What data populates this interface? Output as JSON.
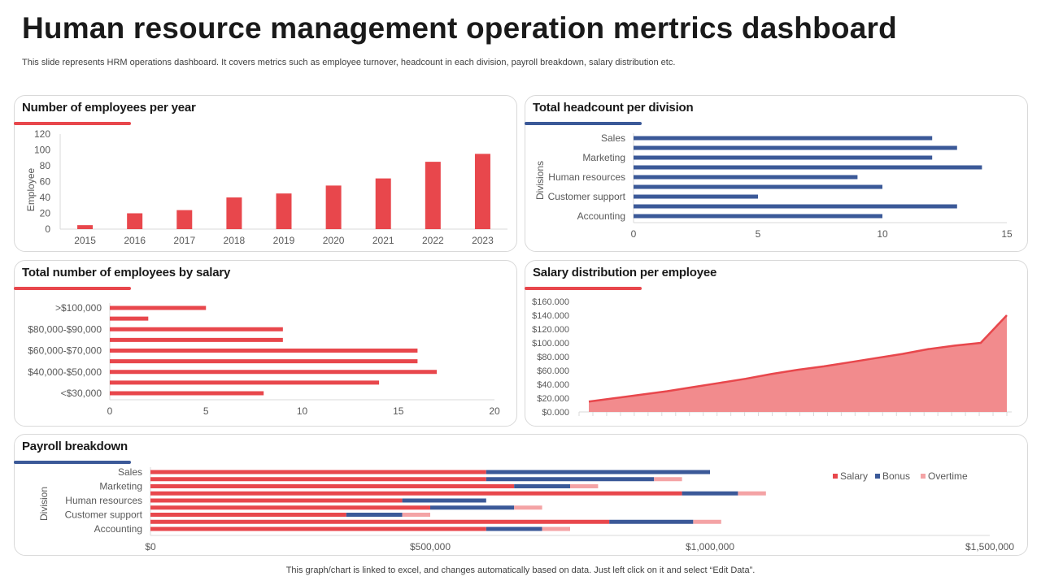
{
  "page": {
    "title": "Human resource management operation mertrics dashboard",
    "subtitle": "This slide represents HRM operations dashboard. It covers metrics such as employee turnover, headcount in each division, payroll breakdown, salary distribution etc.",
    "footer": "This graph/chart is linked to excel,  and changes automatically based on data. Just left click on it and select “Edit Data”."
  },
  "colors": {
    "red": "#e8474c",
    "blue": "#3b5998",
    "pink": "#f4a3a5",
    "area": "#f28b8d"
  },
  "panels": {
    "employees": "Number of employees per year",
    "headcount": "Total headcount per division",
    "salary_count": "Total number of employees by salary",
    "salary_dist": "Salary distribution per employee",
    "payroll": "Payroll breakdown"
  },
  "chart_data": [
    {
      "id": "employees",
      "type": "bar",
      "title": "Number of employees per year",
      "ylabel": "Employee",
      "ylim": [
        0,
        120
      ],
      "yticks": [
        0,
        20,
        40,
        60,
        80,
        100,
        120
      ],
      "categories": [
        "2015",
        "2016",
        "2017",
        "2018",
        "2019",
        "2020",
        "2021",
        "2022",
        "2023"
      ],
      "values": [
        5,
        20,
        24,
        40,
        45,
        55,
        64,
        85,
        95
      ],
      "grid": false
    },
    {
      "id": "headcount",
      "type": "bar",
      "orientation": "horizontal",
      "title": "Total headcount per division",
      "ylabel": "Divisions",
      "xlim": [
        0,
        15
      ],
      "xticks": [
        0,
        5,
        10,
        15
      ],
      "tick_labels": [
        "Sales",
        "Marketing",
        "Human resources",
        "Customer support",
        "Accounting"
      ],
      "values": [
        12,
        13,
        12,
        14,
        9,
        10,
        5,
        13,
        10
      ]
    },
    {
      "id": "salary_count",
      "type": "bar",
      "orientation": "horizontal",
      "title": "Total number of employees by salary",
      "xlim": [
        0,
        20
      ],
      "xticks": [
        0,
        5,
        10,
        15,
        20
      ],
      "tick_labels": [
        ">$100,000",
        "$80,000-$90,000",
        "$60,000-$70,000",
        "$40,000-$50,000",
        "<$30,000"
      ],
      "values": [
        5,
        2,
        9,
        9,
        16,
        16,
        17,
        14,
        8
      ]
    },
    {
      "id": "salary_dist",
      "type": "area",
      "title": "Salary distribution per employee",
      "ylim": [
        0,
        160000
      ],
      "yticks": [
        "$0.000",
        "$20.000",
        "$40.000",
        "$60.000",
        "$80.000",
        "$100.000",
        "$120.000",
        "$140.000",
        "$160.000"
      ],
      "values": [
        15000,
        20000,
        25000,
        30000,
        36000,
        42000,
        48000,
        55000,
        61000,
        66000,
        72000,
        78000,
        84000,
        91000,
        96000,
        100000,
        140000
      ]
    },
    {
      "id": "payroll",
      "type": "bar",
      "orientation": "horizontal",
      "stacked": true,
      "title": "Payroll breakdown",
      "ylabel": "Division",
      "xlim": [
        0,
        1500000
      ],
      "xticks": [
        "$0",
        "$500,000",
        "$1,000,000",
        "$1,500,000"
      ],
      "tick_labels": [
        "Sales",
        "Marketing",
        "Human resources",
        "Customer support",
        "Accounting"
      ],
      "legend": "right",
      "series": [
        {
          "name": "Salary",
          "values": [
            600000,
            600000,
            650000,
            950000,
            450000,
            500000,
            350000,
            820000,
            600000
          ]
        },
        {
          "name": "Bonus",
          "values": [
            400000,
            300000,
            100000,
            100000,
            150000,
            150000,
            100000,
            150000,
            100000
          ]
        },
        {
          "name": "Overtime",
          "values": [
            0,
            50000,
            50000,
            50000,
            0,
            50000,
            50000,
            50000,
            50000
          ]
        }
      ]
    }
  ]
}
